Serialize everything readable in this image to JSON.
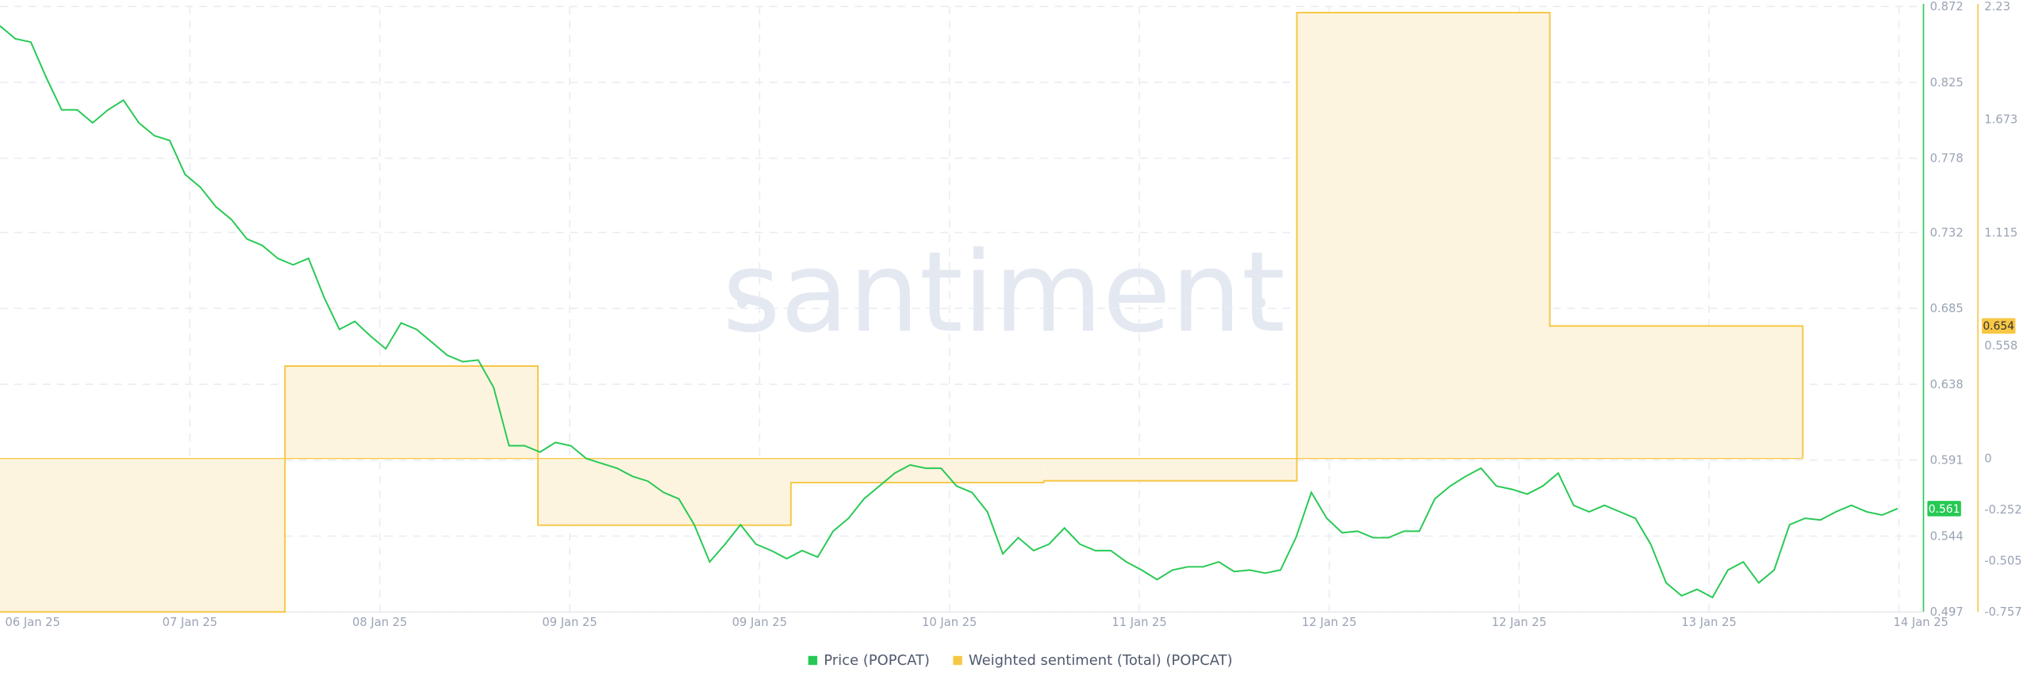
{
  "chart_data": {
    "type": "line-step",
    "watermark": "santiment",
    "xticks": [
      "06 Jan 25",
      "07 Jan 25",
      "08 Jan 25",
      "09 Jan 25",
      "09 Jan 25",
      "10 Jan 25",
      "11 Jan 25",
      "12 Jan 25",
      "12 Jan 25",
      "13 Jan 25",
      "14 Jan 25"
    ],
    "ylim": [
      0.497,
      0.872
    ],
    "yticks": [
      0.497,
      0.544,
      0.591,
      0.638,
      0.685,
      0.732,
      0.778,
      0.825,
      0.872
    ],
    "y2lim": [
      -0.757,
      2.23
    ],
    "y2ticks": [
      -0.757,
      -0.505,
      -0.252,
      0,
      0.558,
      1.115,
      1.673,
      2.23
    ],
    "grid": true,
    "series": [
      {
        "name": "Price (POPCAT)",
        "color": "#26c953",
        "values": [
          0.86,
          0.852,
          0.85,
          0.828,
          0.808,
          0.808,
          0.8,
          0.808,
          0.814,
          0.8,
          0.792,
          0.789,
          0.768,
          0.76,
          0.748,
          0.74,
          0.728,
          0.724,
          0.716,
          0.712,
          0.716,
          0.692,
          0.672,
          0.677,
          0.668,
          0.66,
          0.676,
          0.672,
          0.664,
          0.656,
          0.652,
          0.653,
          0.636,
          0.6,
          0.6,
          0.596,
          0.602,
          0.6,
          0.592,
          0.589,
          0.586,
          0.581,
          0.578,
          0.571,
          0.567,
          0.551,
          0.528,
          0.539,
          0.551,
          0.539,
          0.535,
          0.53,
          0.535,
          0.531,
          0.547,
          0.555,
          0.567,
          0.575,
          0.583,
          0.588,
          0.586,
          0.586,
          0.575,
          0.571,
          0.559,
          0.533,
          0.543,
          0.535,
          0.539,
          0.549,
          0.539,
          0.535,
          0.535,
          0.528,
          0.523,
          0.517,
          0.523,
          0.525,
          0.525,
          0.528,
          0.522,
          0.523,
          0.521,
          0.523,
          0.543,
          0.571,
          0.555,
          0.546,
          0.547,
          0.543,
          0.543,
          0.547,
          0.547,
          0.567,
          0.575,
          0.581,
          0.586,
          0.575,
          0.573,
          0.57,
          0.575,
          0.583,
          0.563,
          0.559,
          0.563,
          0.559,
          0.555,
          0.539,
          0.515,
          0.507,
          0.511,
          0.506,
          0.523,
          0.528,
          0.515,
          0.523,
          0.551,
          0.555,
          0.554,
          0.559,
          0.563,
          0.559,
          0.557,
          0.561
        ]
      },
      {
        "name": "Weighted sentiment (Total) (POPCAT)",
        "color": "#f7c744",
        "axis": "y2",
        "values": [
          -0.757,
          0.456,
          -0.329,
          -0.119,
          -0.11,
          2.2,
          0.654
        ]
      }
    ]
  }
}
